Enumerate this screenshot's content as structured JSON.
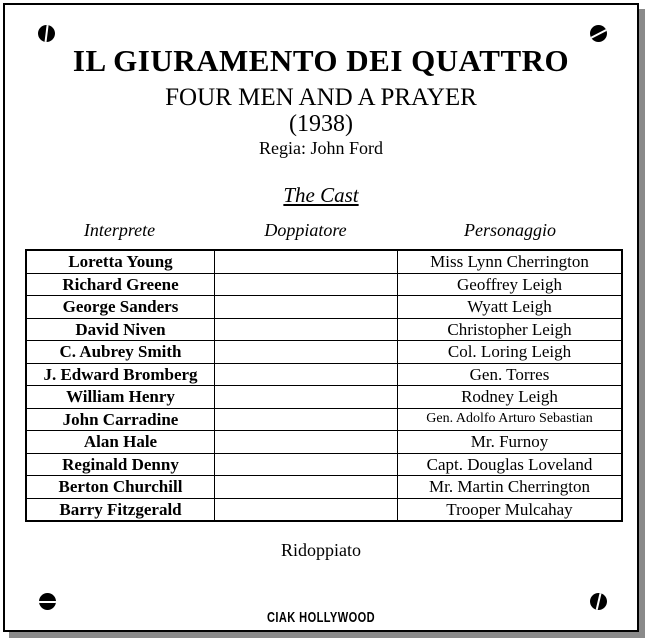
{
  "page": {
    "title": "IL GIURAMENTO DEI QUATTRO",
    "original_title": "FOUR MEN AND A PRAYER",
    "year": "(1938)",
    "director": "Regia: John Ford",
    "section_heading": "The Cast",
    "footer_note": "Ridoppiato",
    "logo_text": "CIAK HOLLYWOOD"
  },
  "icons": {
    "corner_decoration": "screw-icon"
  },
  "colors": {
    "text": "#000000",
    "background": "#ffffff",
    "page_shadow": "#8a8a8a"
  },
  "cast": {
    "columns": [
      "Interprete",
      "Doppiatore",
      "Personaggio"
    ],
    "rows": [
      {
        "interprete": "Loretta Young",
        "doppiatore": "",
        "personaggio": "Miss Lynn Cherrington"
      },
      {
        "interprete": "Richard Greene",
        "doppiatore": "",
        "personaggio": "Geoffrey Leigh"
      },
      {
        "interprete": "George Sanders",
        "doppiatore": "",
        "personaggio": "Wyatt Leigh"
      },
      {
        "interprete": "David Niven",
        "doppiatore": "",
        "personaggio": "Christopher Leigh"
      },
      {
        "interprete": "C. Aubrey Smith",
        "doppiatore": "",
        "personaggio": "Col. Loring Leigh"
      },
      {
        "interprete": "J. Edward Bromberg",
        "doppiatore": "",
        "personaggio": "Gen. Torres"
      },
      {
        "interprete": "William Henry",
        "doppiatore": "",
        "personaggio": "Rodney Leigh"
      },
      {
        "interprete": "John Carradine",
        "doppiatore": "",
        "personaggio": "Gen. Adolfo Arturo Sebastian"
      },
      {
        "interprete": "Alan Hale",
        "doppiatore": "",
        "personaggio": "Mr. Furnoy"
      },
      {
        "interprete": "Reginald Denny",
        "doppiatore": "",
        "personaggio": "Capt. Douglas Loveland"
      },
      {
        "interprete": "Berton Churchill",
        "doppiatore": "",
        "personaggio": "Mr. Martin Cherrington"
      },
      {
        "interprete": "Barry Fitzgerald",
        "doppiatore": "",
        "personaggio": "Trooper Mulcahay"
      }
    ]
  }
}
